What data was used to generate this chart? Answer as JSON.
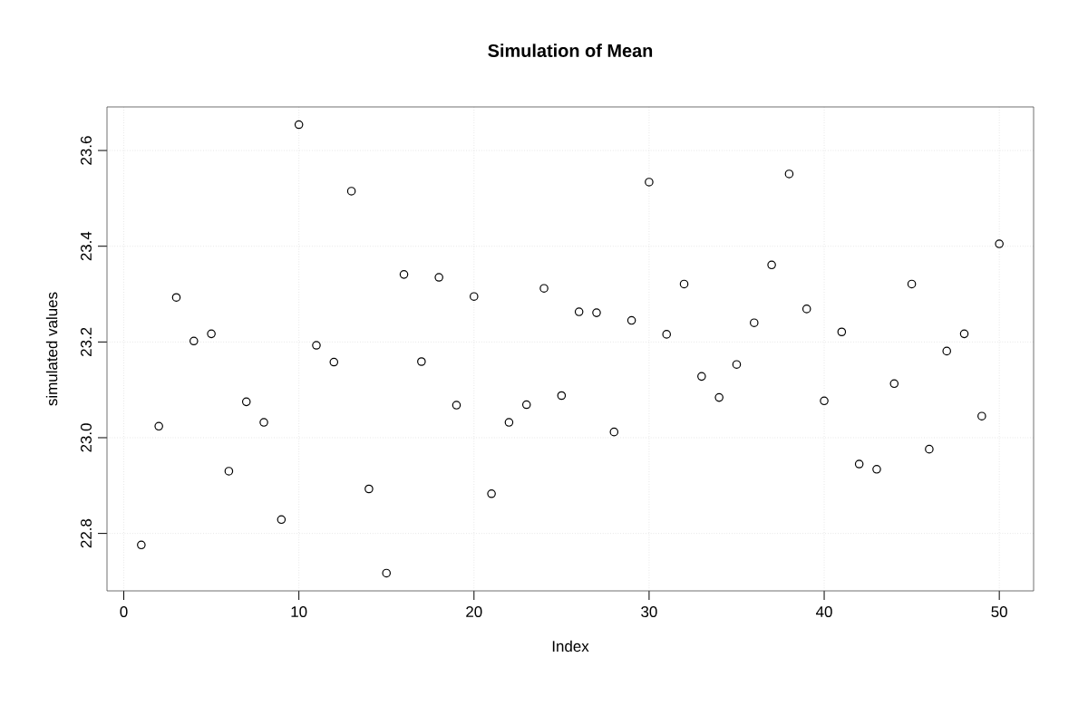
{
  "chart_data": {
    "type": "scatter",
    "title": "Simulation of Mean",
    "xlabel": "Index",
    "ylabel": "simulated values",
    "x": [
      1,
      2,
      3,
      4,
      5,
      6,
      7,
      8,
      9,
      10,
      11,
      12,
      13,
      14,
      15,
      16,
      17,
      18,
      19,
      20,
      21,
      22,
      23,
      24,
      25,
      26,
      27,
      28,
      29,
      30,
      31,
      32,
      33,
      34,
      35,
      36,
      37,
      38,
      39,
      40,
      41,
      42,
      43,
      44,
      45,
      46,
      47,
      48,
      49,
      50
    ],
    "values": [
      22.776,
      23.024,
      23.293,
      23.202,
      23.217,
      22.93,
      23.075,
      23.032,
      22.829,
      23.654,
      23.193,
      23.158,
      23.515,
      22.893,
      22.717,
      23.341,
      23.159,
      23.335,
      23.068,
      23.295,
      22.883,
      23.032,
      23.069,
      23.312,
      23.088,
      23.263,
      23.261,
      23.012,
      23.245,
      23.534,
      23.216,
      23.321,
      23.128,
      23.084,
      23.153,
      23.24,
      23.361,
      23.551,
      23.269,
      23.077,
      23.221,
      22.945,
      22.934,
      23.113,
      23.321,
      22.976,
      23.181,
      23.217,
      23.045,
      23.405
    ],
    "color": "#000000",
    "marker": "circle",
    "grid": true,
    "xlim": [
      -0.96,
      51.96
    ],
    "ylim": [
      22.68,
      23.691
    ],
    "xticks": [
      0,
      10,
      20,
      30,
      40,
      50
    ],
    "yticks": [
      {
        "value": 22.8,
        "label": "22.8"
      },
      {
        "value": 23.0,
        "label": "23.0"
      },
      {
        "value": 23.2,
        "label": "23.2"
      },
      {
        "value": 23.4,
        "label": "23.4"
      },
      {
        "value": 23.6,
        "label": "23.6"
      }
    ]
  }
}
